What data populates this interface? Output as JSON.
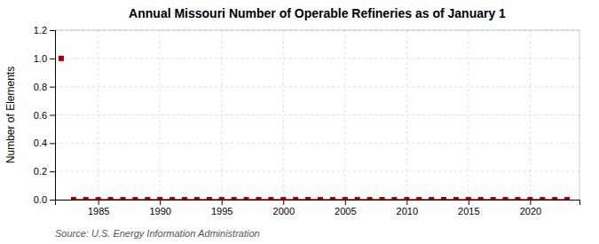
{
  "chart_data": {
    "type": "scatter",
    "title": "Annual Missouri Number of Operable Refineries as of January 1",
    "ylabel": "Number of Elements",
    "source": "Source: U.S. Energy Information Administration",
    "x": [
      1982,
      1983,
      1984,
      1985,
      1986,
      1987,
      1988,
      1989,
      1990,
      1991,
      1992,
      1993,
      1994,
      1995,
      1996,
      1997,
      1998,
      1999,
      2000,
      2001,
      2002,
      2003,
      2004,
      2005,
      2006,
      2007,
      2008,
      2009,
      2010,
      2011,
      2012,
      2013,
      2014,
      2015,
      2016,
      2017,
      2018,
      2019,
      2020,
      2021,
      2022,
      2023
    ],
    "series": [
      {
        "type": "scatter",
        "marker": "square",
        "color": "#aa0000",
        "values": [
          1,
          0,
          0,
          0,
          0,
          0,
          0,
          0,
          0,
          0,
          0,
          0,
          0,
          0,
          0,
          0,
          0,
          0,
          0,
          0,
          0,
          0,
          0,
          0,
          0,
          0,
          0,
          0,
          0,
          0,
          0,
          0,
          0,
          0,
          0,
          0,
          0,
          0,
          0,
          0,
          0,
          0
        ]
      },
      {
        "type": "line",
        "color": "#cc0000",
        "values": [
          null,
          0,
          0,
          0,
          0,
          0,
          0,
          0,
          0,
          0,
          0,
          0,
          0,
          0,
          0,
          0,
          0,
          0,
          0,
          0,
          0,
          0,
          0,
          0,
          0,
          0,
          0,
          0,
          0,
          0,
          0,
          0,
          0,
          0,
          0,
          0,
          0,
          0,
          0,
          0,
          0,
          0
        ]
      }
    ],
    "xlim": [
      1981.5,
      2024
    ],
    "xticks": [
      1985,
      1990,
      1995,
      2000,
      2005,
      2010,
      2015,
      2020
    ],
    "ylim": [
      0.0,
      1.2
    ],
    "yticks": [
      {
        "value": 0,
        "label": "0.0"
      },
      0.2,
      0.4,
      0.6,
      0.8,
      {
        "value": 1,
        "label": "1.0"
      },
      1.2
    ],
    "grid": true
  }
}
